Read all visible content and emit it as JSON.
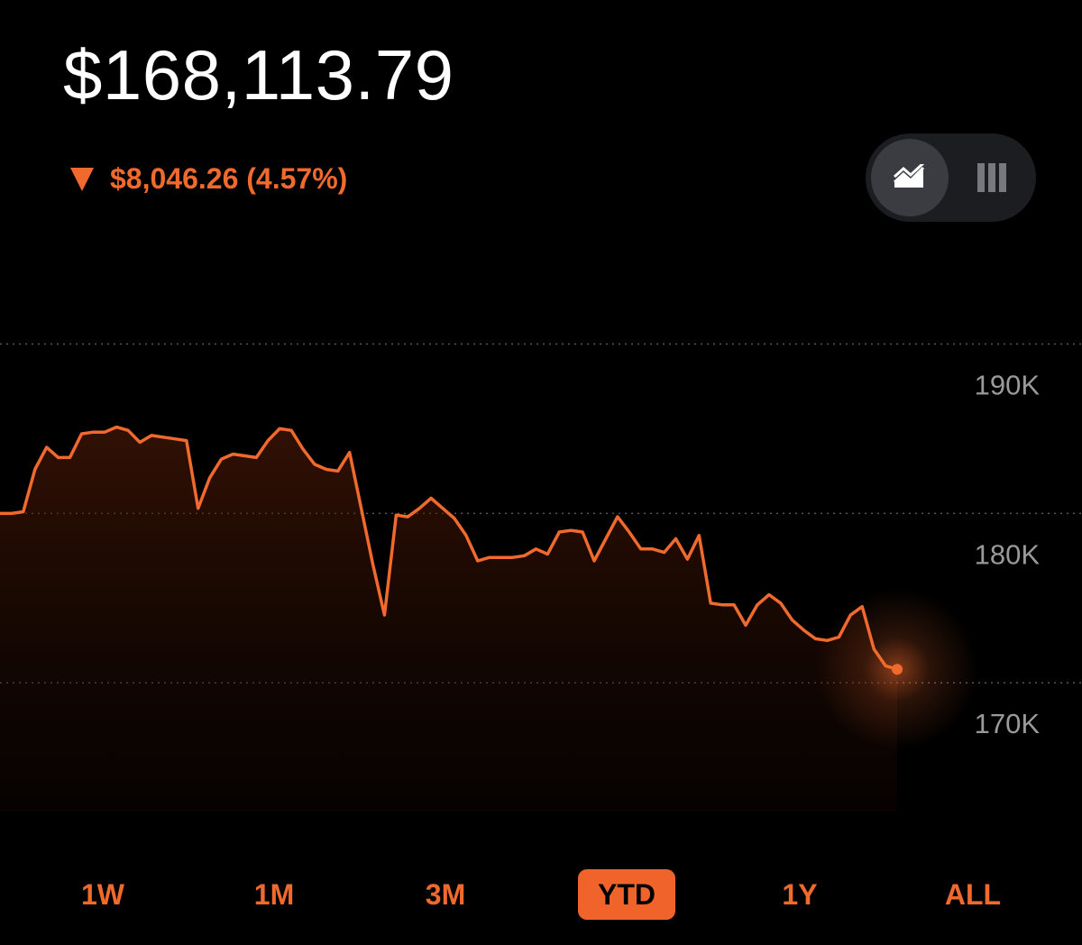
{
  "portfolio": {
    "value": "$168,113.79",
    "change": "$8,046.26 (4.57%)",
    "direction_icon": "down-triangle-icon"
  },
  "view_toggle": {
    "options": [
      "line-chart-icon",
      "bar-chart-icon"
    ],
    "selected": "line-chart-icon"
  },
  "ranges": {
    "items": [
      "1W",
      "1M",
      "3M",
      "YTD",
      "1Y",
      "ALL"
    ],
    "selected": "YTD"
  },
  "colors": {
    "accent": "#f06a2e",
    "background": "#000000",
    "text": "#ffffff",
    "axis_label": "#9a9a9a"
  },
  "chart_data": {
    "type": "line",
    "y_tick_labels": [
      "190K",
      "180K",
      "170K"
    ],
    "y_ticks": [
      190000,
      180000,
      170000
    ],
    "ylim": [
      162400,
      197000
    ],
    "grid": true,
    "legend": "none",
    "series": [
      {
        "values": [
          180000,
          180000,
          180100,
          182600,
          183900,
          183300,
          183300,
          184700,
          184800,
          184800,
          185100,
          184900,
          184200,
          184600,
          184500,
          184400,
          184300,
          180300,
          182100,
          183200,
          183500,
          183400,
          183300,
          184300,
          185000,
          184900,
          183800,
          182900,
          182600,
          182500,
          183600,
          180300,
          177000,
          174000,
          179900,
          179800,
          180300,
          180900,
          180300,
          179700,
          178700,
          177200,
          177400,
          177400,
          177400,
          177500,
          177900,
          177600,
          178900,
          179000,
          178900,
          177200,
          178500,
          179800,
          178900,
          177900,
          177900,
          177700,
          178500,
          177300,
          178700,
          174700,
          174600,
          174600,
          173400,
          174600,
          175200,
          174700,
          173700,
          173100,
          172600,
          172500,
          172700,
          174000,
          174500,
          172000,
          171000,
          170800
        ]
      }
    ]
  }
}
